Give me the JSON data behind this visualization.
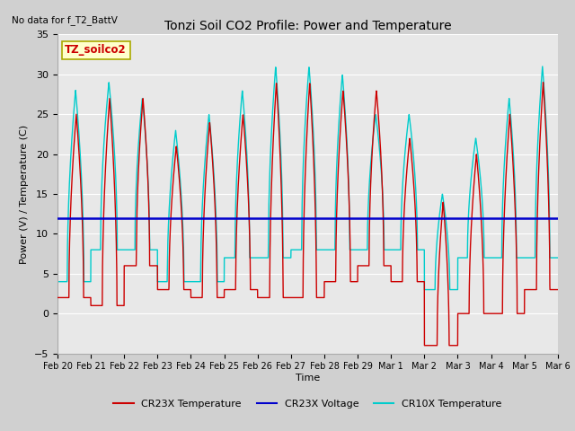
{
  "title": "Tonzi Soil CO2 Profile: Power and Temperature",
  "top_left_text": "No data for f_T2_BattV",
  "legend_box_text": "TZ_soilco2",
  "ylabel": "Power (V) / Temperature (C)",
  "xlabel": "Time",
  "ylim": [
    -5,
    35
  ],
  "yticks": [
    -5,
    0,
    5,
    10,
    15,
    20,
    25,
    30,
    35
  ],
  "fig_bg_color": "#d0d0d0",
  "plot_bg_color": "#e8e8e8",
  "voltage_line_value": 12.0,
  "voltage_color": "#0000cc",
  "cr23x_color": "#cc0000",
  "cr10x_color": "#00cccc",
  "legend_items": [
    "CR23X Temperature",
    "CR23X Voltage",
    "CR10X Temperature"
  ],
  "xtick_labels": [
    "Feb 20",
    "Feb 21",
    "Feb 22",
    "Feb 23",
    "Feb 24",
    "Feb 25",
    "Feb 26",
    "Feb 27",
    "Feb 28",
    "Feb 29",
    "Mar 1",
    "Mar 2",
    "Mar 3",
    "Mar 4",
    "Mar 5",
    "Mar 6"
  ],
  "figwidth": 6.4,
  "figheight": 4.8,
  "dpi": 100
}
